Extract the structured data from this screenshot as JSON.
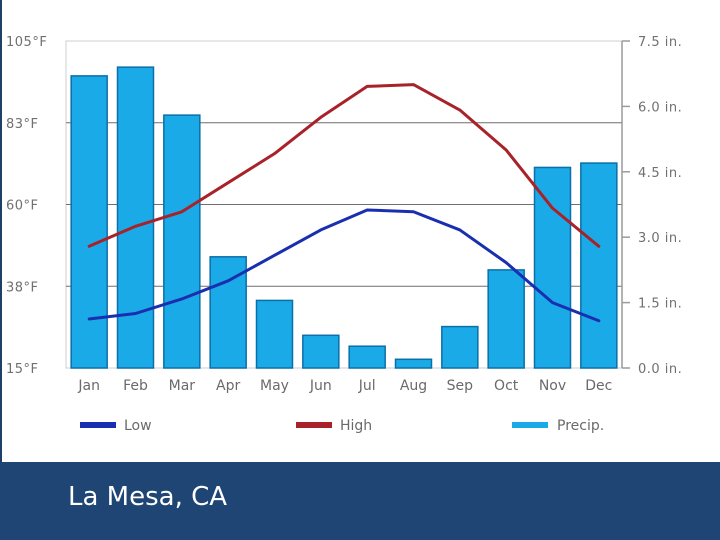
{
  "location": "La Mesa, CA",
  "colors": {
    "low": "#1a2fb0",
    "high": "#a8222a",
    "precip_fill": "#1aaae8",
    "precip_edge": "#0b6fa8",
    "footer": "#1f4575"
  },
  "chart_data": {
    "type": "bar+line",
    "categories": [
      "Jan",
      "Feb",
      "Mar",
      "Apr",
      "May",
      "Jun",
      "Jul",
      "Aug",
      "Sep",
      "Oct",
      "Nov",
      "Dec"
    ],
    "left_axis": {
      "ticks": [
        "105°F",
        "83°F",
        "60°F",
        "38°F",
        "15°F"
      ],
      "range": [
        15,
        105
      ],
      "unit": "°F"
    },
    "right_axis": {
      "ticks": [
        "7.5 in.",
        "6.0 in.",
        "4.5 in.",
        "3.0 in.",
        "1.5 in.",
        "0.0 in."
      ],
      "range": [
        0,
        7.5
      ],
      "unit": "in."
    },
    "series": [
      {
        "name": "Low",
        "axis": "left",
        "kind": "line",
        "values": [
          28.5,
          30,
          34,
          39,
          46,
          53,
          58.5,
          58,
          53,
          44,
          33,
          28
        ]
      },
      {
        "name": "High",
        "axis": "left",
        "kind": "line",
        "values": [
          48.5,
          54,
          58,
          66,
          74,
          84,
          92.5,
          93,
          86,
          75,
          59,
          48.5
        ]
      },
      {
        "name": "Precip.",
        "axis": "right",
        "kind": "bar",
        "values": [
          6.7,
          6.9,
          5.8,
          2.55,
          1.55,
          0.75,
          0.5,
          0.2,
          0.95,
          2.25,
          4.6,
          4.7
        ]
      }
    ],
    "legend": [
      {
        "label": "Low",
        "key": "low"
      },
      {
        "label": "High",
        "key": "high"
      },
      {
        "label": "Precip.",
        "key": "precip"
      }
    ],
    "gridlines": true
  }
}
